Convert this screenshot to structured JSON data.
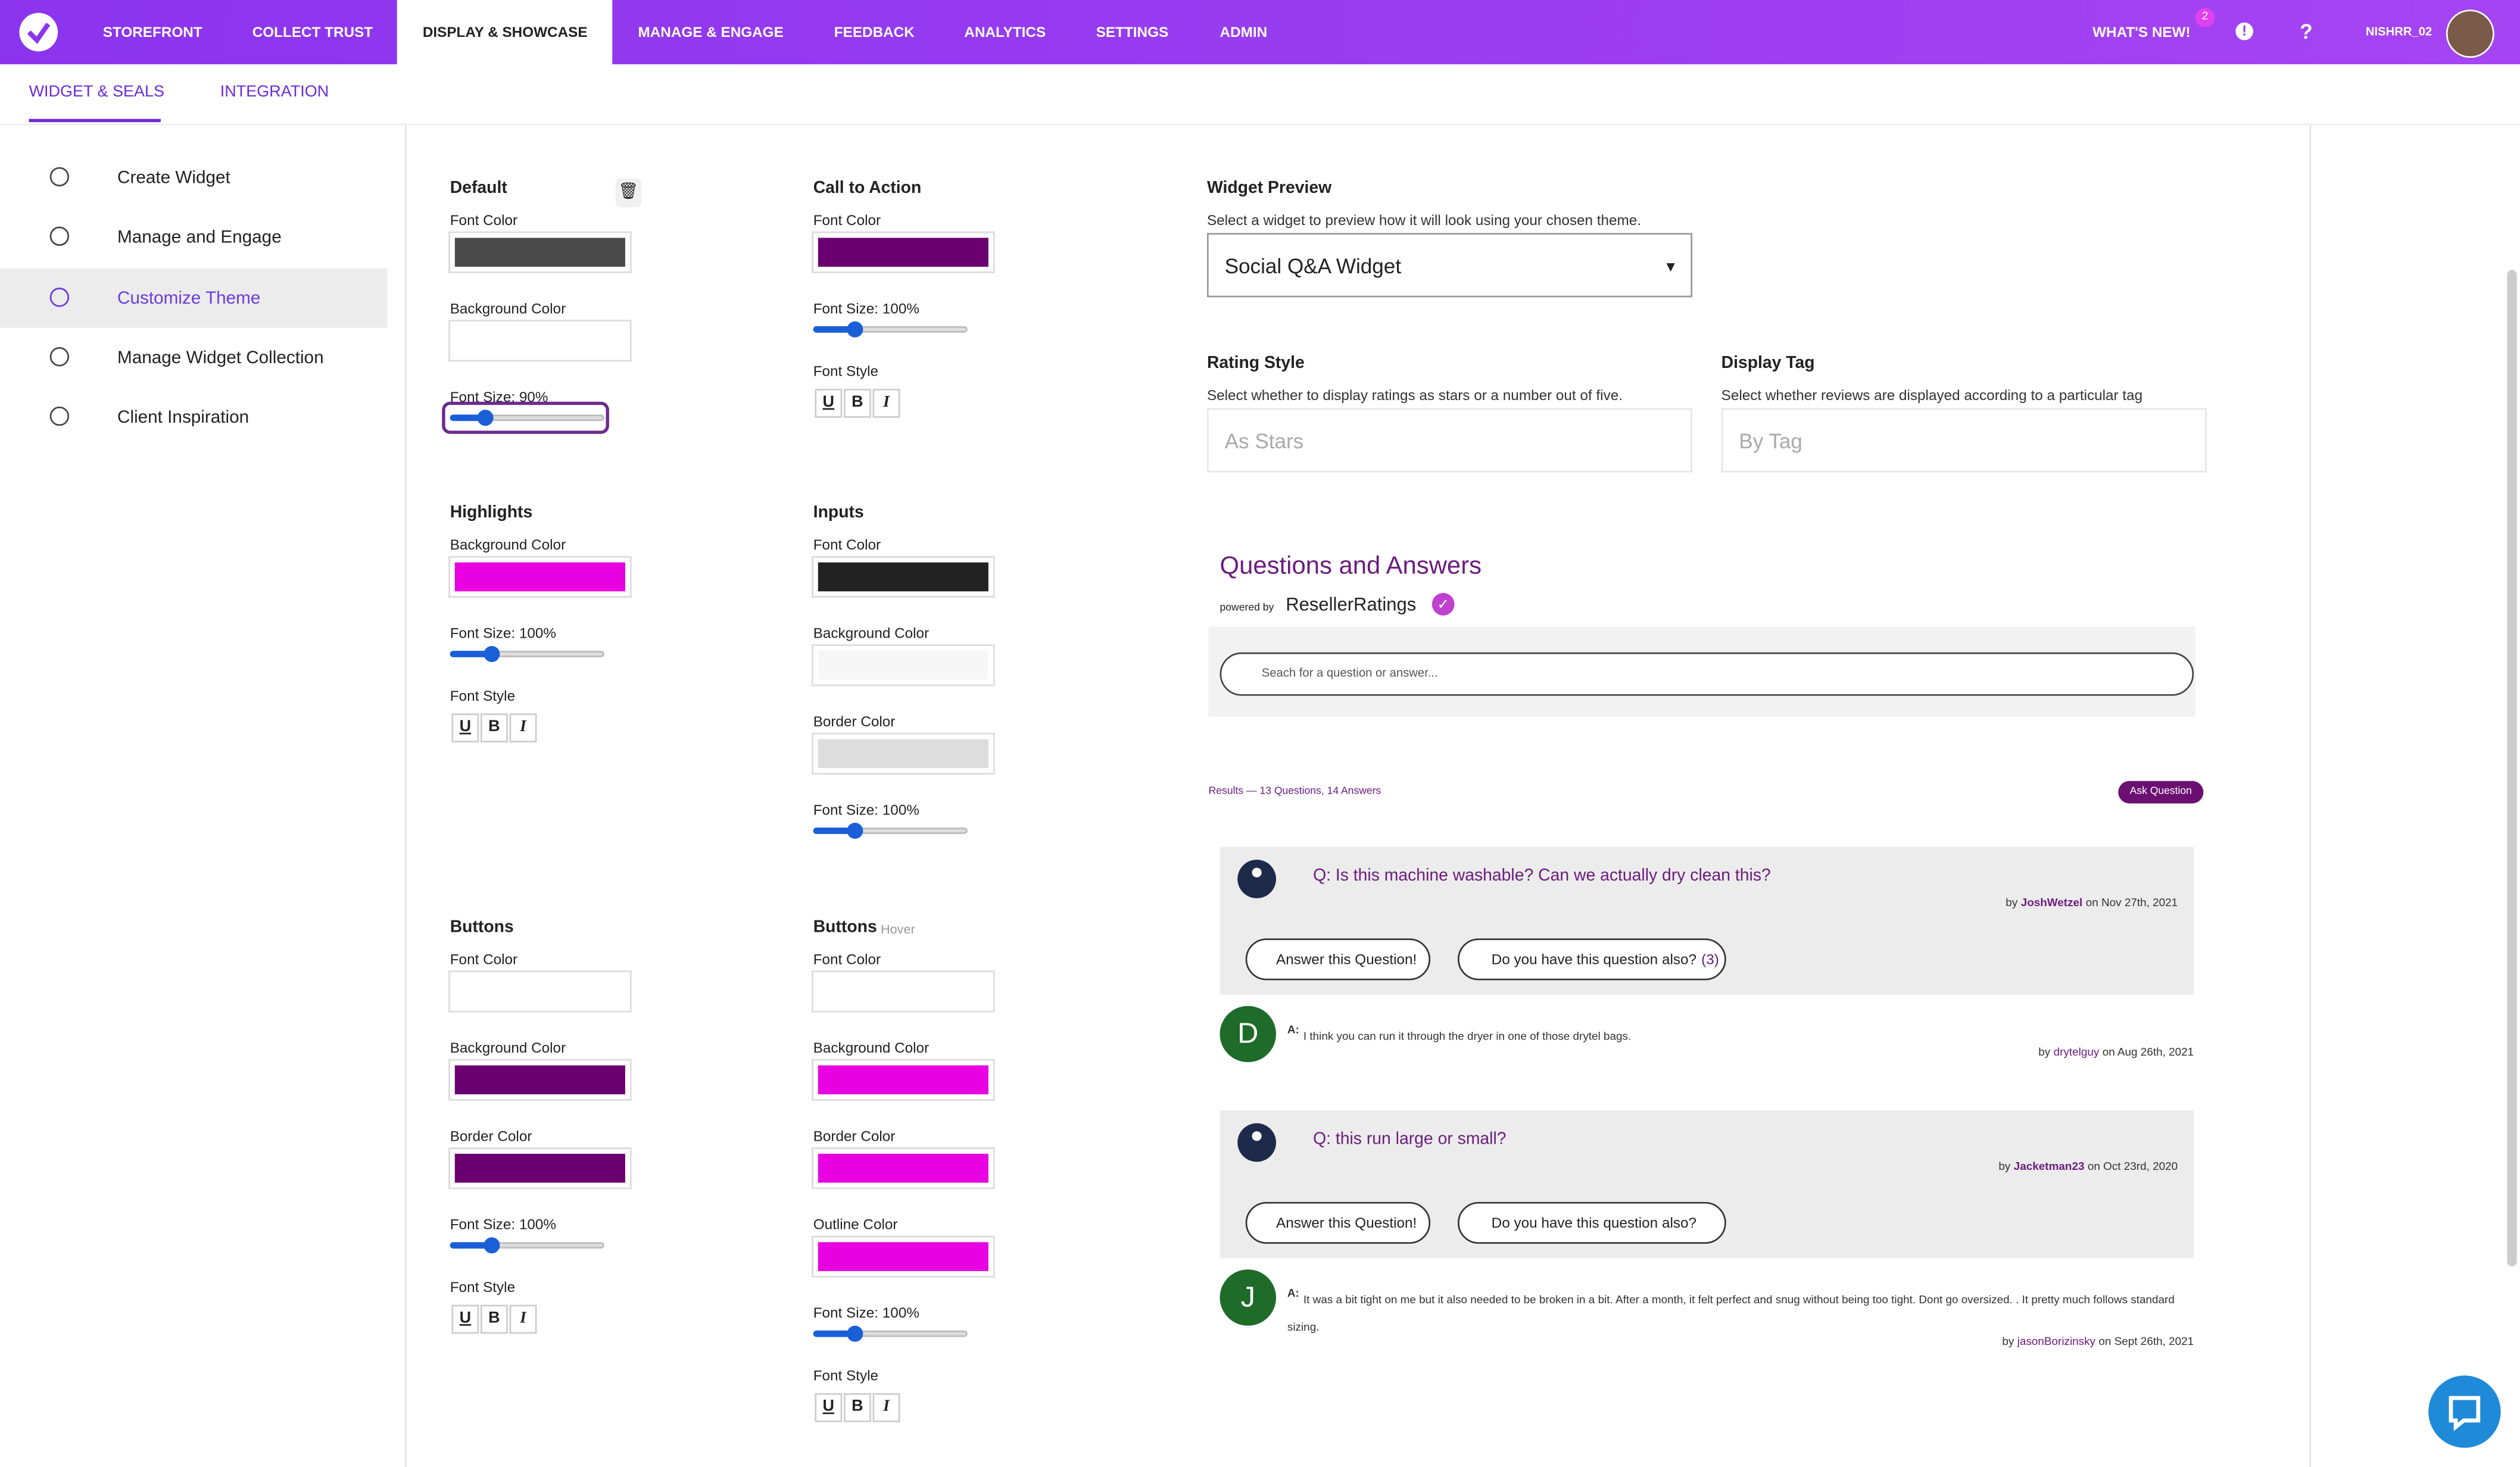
{
  "nav": {
    "items": [
      "STOREFRONT",
      "COLLECT TRUST",
      "DISPLAY & SHOWCASE",
      "MANAGE & ENGAGE",
      "FEEDBACK",
      "ANALYTICS",
      "SETTINGS",
      "ADMIN"
    ],
    "whats_new": "WHAT'S NEW!",
    "badge": "2",
    "user": "NISHRR_02"
  },
  "subnav": {
    "tabs": [
      "WIDGET & SEALS",
      "INTEGRATION"
    ]
  },
  "sidebar": {
    "items": [
      "Create Widget",
      "Manage and Engage",
      "Customize Theme",
      "Manage Widget Collection",
      "Client Inspiration"
    ]
  },
  "theme": {
    "sections": [
      {
        "title": "Default",
        "fields": [
          {
            "label": "Font Color",
            "color": "#4a4a4a"
          },
          {
            "label": "Background Color",
            "color": "#ffffff"
          },
          {
            "label": "Font Size: 90%"
          }
        ]
      },
      {
        "title": "Call to Action",
        "fields": [
          {
            "label": "Font Color",
            "color": "#6a0070"
          },
          {
            "label": "Font Size: 100%"
          },
          {
            "label": "Font Style",
            "buttons": [
              "U",
              "B",
              "I"
            ]
          }
        ]
      },
      {
        "title": "Highlights",
        "fields": [
          {
            "label": "Background Color",
            "color": "#e800e0"
          },
          {
            "label": "Font Size: 100%"
          },
          {
            "label": "Font Style",
            "buttons": [
              "U",
              "B",
              "I"
            ]
          }
        ]
      },
      {
        "title": "Inputs",
        "fields": [
          {
            "label": "Font Color",
            "color": "#222222"
          },
          {
            "label": "Background Color",
            "color": "#f7f7f7"
          },
          {
            "label": "Border Color",
            "color": "#dddddd"
          },
          {
            "label": "Font Size: 100%"
          }
        ]
      },
      {
        "title": "Buttons",
        "fields": [
          {
            "label": "Font Color",
            "color": "#ffffff"
          },
          {
            "label": "Background Color",
            "color": "#6a0070"
          },
          {
            "label": "Border Color",
            "color": "#6a0070"
          },
          {
            "label": "Font Size: 100%"
          },
          {
            "label": "Font Style",
            "buttons": [
              "U",
              "B",
              "I"
            ]
          }
        ]
      },
      {
        "title": "Buttons",
        "subtitle": "Hover",
        "fields": [
          {
            "label": "Font Color",
            "color": "#ffffff"
          },
          {
            "label": "Background Color",
            "color": "#e800e0"
          },
          {
            "label": "Border Color",
            "color": "#e800e0"
          },
          {
            "label": "Outline Color",
            "color": "#e800e0"
          },
          {
            "label": "Font Size: 100%"
          },
          {
            "label": "Font Style",
            "buttons": [
              "U",
              "B",
              "I"
            ]
          }
        ]
      }
    ]
  },
  "preview": {
    "title": "Widget Preview",
    "description": "Select a widget to preview how it will look using your chosen theme.",
    "widget": "Social Q&A Widget",
    "rating_title": "Rating Style",
    "rating_description": "Select whether to display ratings as stars or a number out of five.",
    "rating_value": "As Stars",
    "tag_title": "Display Tag",
    "tag_description": "Select whether reviews are displayed according to a particular tag",
    "tag_value": "By Tag"
  },
  "qa": {
    "title": "Questions and Answers",
    "powered_by": "powered by",
    "brand": "ResellerRatings",
    "search_placeholder": "Seach for a question or answer...",
    "results": "Results — 13 Questions, 14 Answers",
    "ask": "Ask Question",
    "answer_button": "Answer this Question!",
    "also_button": "Do you have this question also?",
    "threads": [
      {
        "question": "Q: Is this machine washable? Can we actually dry clean this?",
        "by": "by",
        "author": "JoshWetzel",
        "date": "on Nov 27th, 2021",
        "count": "(3)",
        "answer": {
          "initial": "D",
          "prefix": "A:",
          "text": "I think you can run it through the dryer in one of those drytel bags.",
          "by": "by",
          "author": "drytelguy",
          "date": "on Aug 26th, 2021"
        }
      },
      {
        "question": "Q: this run large or small?",
        "by": "by",
        "author": "Jacketman23",
        "date": "on Oct 23rd, 2020",
        "answer": {
          "initial": "J",
          "prefix": "A:",
          "text": "It was a bit tight on me but it also needed to be broken in a bit. After a month, it felt perfect and snug without being too tight. Dont go oversized. . It pretty much follows standard sizing.",
          "by": "by",
          "author": "jasonBorizinsky",
          "date": "on Sept 26th, 2021"
        }
      }
    ]
  }
}
